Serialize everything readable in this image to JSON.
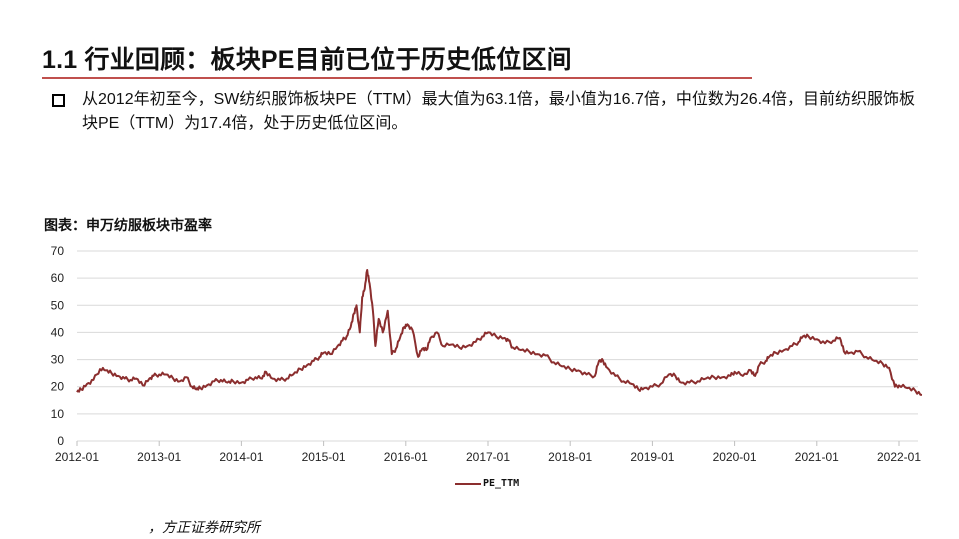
{
  "header": {
    "title": "1.1 行业回顾：板块PE目前已位于历史低位区间"
  },
  "bullet": {
    "text": "从2012年初至今，SW纺织服饰板块PE（TTM）最大值为63.1倍，最小值为16.7倍，中位数为26.4倍，目前纺织服饰板块PE（TTM）为17.4倍，处于历史低位区间。"
  },
  "figure": {
    "title": "图表：申万纺服板块市盈率",
    "source": "，方正证券研究所"
  },
  "colors": {
    "accent_rule": "#c0504d",
    "series": "#8b2e2e",
    "grid": "#d9d9d9"
  },
  "chart_data": {
    "type": "line",
    "title": "图表：申万纺服板块市盈率",
    "xlabel": "",
    "ylabel": "",
    "ylim": [
      0,
      70
    ],
    "yticks": [
      0,
      10,
      20,
      30,
      40,
      50,
      60,
      70
    ],
    "xticks": [
      "2012-01",
      "2013-01",
      "2014-01",
      "2015-01",
      "2016-01",
      "2017-01",
      "2018-01",
      "2019-01",
      "2020-01",
      "2021-01",
      "2022-01"
    ],
    "grid": true,
    "legend_position": "bottom",
    "series": [
      {
        "name": "PE_TTM",
        "x": [
          2012.0,
          2012.05,
          2012.12,
          2012.2,
          2012.28,
          2012.35,
          2012.42,
          2012.5,
          2012.58,
          2012.65,
          2012.72,
          2012.8,
          2012.88,
          2012.93,
          2013.0,
          2013.08,
          2013.17,
          2013.25,
          2013.33,
          2013.4,
          2013.45,
          2013.5,
          2013.58,
          2013.67,
          2013.75,
          2013.83,
          2013.9,
          2014.0,
          2014.08,
          2014.17,
          2014.25,
          2014.3,
          2014.38,
          2014.47,
          2014.55,
          2014.63,
          2014.72,
          2014.8,
          2014.88,
          2014.95,
          2015.0,
          2015.08,
          2015.17,
          2015.23,
          2015.28,
          2015.33,
          2015.37,
          2015.4,
          2015.44,
          2015.47,
          2015.5,
          2015.53,
          2015.56,
          2015.6,
          2015.63,
          2015.67,
          2015.72,
          2015.78,
          2015.83,
          2015.88,
          2015.93,
          2015.98,
          2016.02,
          2016.08,
          2016.15,
          2016.2,
          2016.25,
          2016.3,
          2016.38,
          2016.45,
          2016.55,
          2016.65,
          2016.75,
          2016.85,
          2016.93,
          2017.0,
          2017.1,
          2017.2,
          2017.25,
          2017.3,
          2017.4,
          2017.5,
          2017.6,
          2017.7,
          2017.8,
          2017.9,
          2018.0,
          2018.1,
          2018.2,
          2018.3,
          2018.35,
          2018.4,
          2018.45,
          2018.55,
          2018.65,
          2018.75,
          2018.83,
          2018.9,
          2019.0,
          2019.1,
          2019.2,
          2019.28,
          2019.35,
          2019.45,
          2019.55,
          2019.65,
          2019.75,
          2019.85,
          2019.95,
          2020.0,
          2020.1,
          2020.2,
          2020.25,
          2020.3,
          2020.38,
          2020.42,
          2020.5,
          2020.6,
          2020.7,
          2020.78,
          2020.83,
          2020.9,
          2021.0,
          2021.1,
          2021.2,
          2021.28,
          2021.33,
          2021.4,
          2021.5,
          2021.6,
          2021.7,
          2021.8,
          2021.88,
          2021.95,
          2022.0,
          2022.1,
          2022.2,
          2022.28
        ],
        "values": [
          18.0,
          19.0,
          21.0,
          22.5,
          26.5,
          26.0,
          25.0,
          24.0,
          23.0,
          22.5,
          23.0,
          20.5,
          23.0,
          24.0,
          24.5,
          24.5,
          23.0,
          22.0,
          23.5,
          20.0,
          19.0,
          19.5,
          20.5,
          22.0,
          22.5,
          21.5,
          22.0,
          21.5,
          22.5,
          23.5,
          23.0,
          25.5,
          23.0,
          22.5,
          23.0,
          24.5,
          26.5,
          28.0,
          29.5,
          31.0,
          32.5,
          32.0,
          35.0,
          37.0,
          38.5,
          42.0,
          47.0,
          50.0,
          40.0,
          53.0,
          56.0,
          63.0,
          58.0,
          48.0,
          35.0,
          45.0,
          40.0,
          48.0,
          32.0,
          34.0,
          38.0,
          42.0,
          43.0,
          41.0,
          31.0,
          34.0,
          33.5,
          38.0,
          40.0,
          35.0,
          35.5,
          34.5,
          35.0,
          36.5,
          38.5,
          40.0,
          38.5,
          38.0,
          37.0,
          34.5,
          33.5,
          33.0,
          32.0,
          31.5,
          29.0,
          27.5,
          26.5,
          26.0,
          24.5,
          24.0,
          29.5,
          29.5,
          27.0,
          24.0,
          22.0,
          21.0,
          19.0,
          19.5,
          20.0,
          21.0,
          24.5,
          24.0,
          21.5,
          21.5,
          22.0,
          23.0,
          23.5,
          23.5,
          24.0,
          25.5,
          24.0,
          26.0,
          24.0,
          28.0,
          29.5,
          31.0,
          32.5,
          33.5,
          35.0,
          36.5,
          38.5,
          38.5,
          37.5,
          36.0,
          37.0,
          38.0,
          33.0,
          32.5,
          33.0,
          31.0,
          29.5,
          28.5,
          27.0,
          20.0,
          20.5,
          19.5,
          18.5,
          17.0
        ]
      }
    ]
  }
}
